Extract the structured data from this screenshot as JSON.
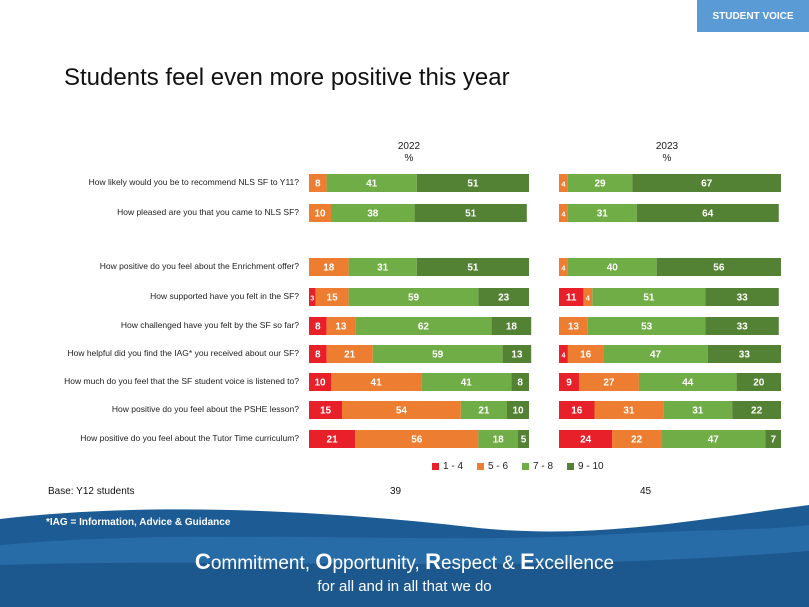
{
  "badge": "STUDENT VOICE",
  "title": "Students feel even more positive this year",
  "years": [
    {
      "label": "2022",
      "unit": "%"
    },
    {
      "label": "2023",
      "unit": "%"
    }
  ],
  "legend": [
    {
      "label": "1 - 4",
      "color": "#e8202a"
    },
    {
      "label": "5 - 6",
      "color": "#ed7d31"
    },
    {
      "label": "7 - 8",
      "color": "#70ad47"
    },
    {
      "label": "9 - 10",
      "color": "#548235"
    }
  ],
  "base": {
    "label": "Base:  Y12 students",
    "n2022": "39",
    "n2023": "45"
  },
  "footnote": "*IAG = Information, Advice & Guidance",
  "motto": {
    "line1": [
      {
        "initial": "C",
        "rest": "ommitment, "
      },
      {
        "initial": "O",
        "rest": "pportunity, "
      },
      {
        "initial": "R",
        "rest": "espect & "
      },
      {
        "initial": "E",
        "rest": "xcellence"
      }
    ],
    "line2": "for all and in all that we do"
  },
  "chart_data": {
    "type": "bar",
    "stacked": true,
    "orientation": "horizontal",
    "categories": [
      "How likely would you be to recommend NLS SF to Y11?",
      "How pleased are you that you came to NLS SF?",
      "How positive do you feel about the Enrichment offer?",
      "How supported have you felt in the SF?",
      "How challenged have you felt by the SF so far?",
      "How helpful did you find the IAG* you received about our SF?",
      "How much do you feel that the SF student voice is listened to?",
      "How positive do you feel about the PSHE lesson?",
      "How positive do you feel about the Tutor Time curriculum?"
    ],
    "series": [
      {
        "name": "1 - 4",
        "color": "#e8202a",
        "y2022": [
          0,
          0,
          0,
          3,
          8,
          8,
          10,
          15,
          21
        ],
        "y2023": [
          0,
          0,
          0,
          11,
          0,
          4,
          9,
          16,
          24
        ]
      },
      {
        "name": "5 - 6",
        "color": "#ed7d31",
        "y2022": [
          8,
          10,
          18,
          15,
          13,
          21,
          41,
          54,
          56
        ],
        "y2023": [
          4,
          4,
          4,
          4,
          13,
          16,
          27,
          31,
          22
        ]
      },
      {
        "name": "7 - 8",
        "color": "#70ad47",
        "y2022": [
          41,
          38,
          31,
          59,
          62,
          59,
          41,
          21,
          18
        ],
        "y2023": [
          29,
          31,
          40,
          51,
          53,
          47,
          44,
          31,
          47
        ]
      },
      {
        "name": "9 - 10",
        "color": "#548235",
        "y2022": [
          51,
          51,
          51,
          23,
          18,
          13,
          8,
          10,
          5
        ],
        "y2023": [
          67,
          64,
          56,
          33,
          33,
          33,
          20,
          22,
          7
        ]
      }
    ],
    "xlim": [
      0,
      100
    ]
  }
}
